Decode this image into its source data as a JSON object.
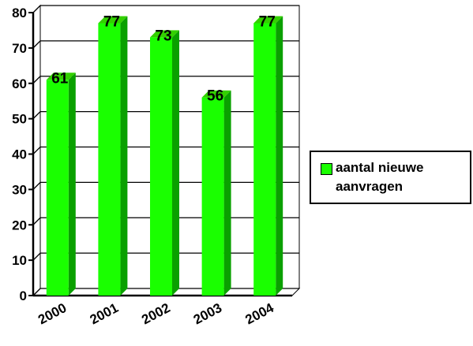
{
  "chart_data": {
    "type": "bar",
    "style": "3d",
    "categories": [
      "2000",
      "2001",
      "2002",
      "2003",
      "2004"
    ],
    "series": [
      {
        "name": "aantal nieuwe aanvragen",
        "values": [
          61,
          77,
          73,
          56,
          77
        ]
      }
    ],
    "data_labels": [
      "61",
      "77",
      "73",
      "56",
      "77"
    ],
    "yticks": [
      "0",
      "10",
      "20",
      "30",
      "40",
      "50",
      "60",
      "70",
      "80"
    ],
    "ylim": [
      0,
      80
    ],
    "title": "",
    "xlabel": "",
    "ylabel": "",
    "grid": true,
    "legend_position": "right",
    "colors": {
      "bar_front": "#1aff00",
      "bar_side": "#0aa000",
      "bar_top": "#33d000",
      "grid": "#000000"
    }
  },
  "legend": {
    "label": "aantal nieuwe\naanvragen",
    "color": "#1aff00"
  }
}
